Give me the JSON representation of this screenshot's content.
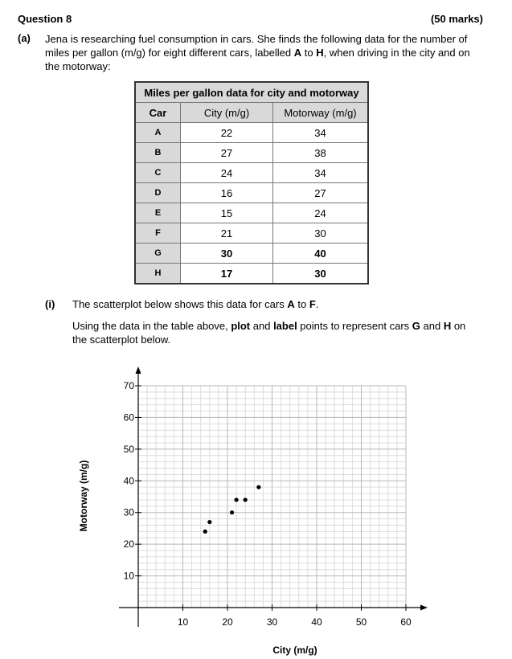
{
  "question": {
    "title": "Question 8",
    "marks": "(50 marks)",
    "part_label": "(a)",
    "part_text_1": "Jena is researching fuel consumption in cars.  She finds the following data for the number of miles per gallon (m/g) for eight different cars, labelled ",
    "part_text_A": "A",
    "part_text_2": " to ",
    "part_text_H": "H",
    "part_text_3": ", when driving in the city and on the motorway:"
  },
  "table": {
    "caption": "Miles per gallon data for city and motorway",
    "headers": [
      "Car",
      "City (m/g)",
      "Motorway (m/g)"
    ],
    "rows": [
      {
        "car": "A",
        "city": "22",
        "motorway": "34",
        "bold": false
      },
      {
        "car": "B",
        "city": "27",
        "motorway": "38",
        "bold": false
      },
      {
        "car": "C",
        "city": "24",
        "motorway": "34",
        "bold": false
      },
      {
        "car": "D",
        "city": "16",
        "motorway": "27",
        "bold": false
      },
      {
        "car": "E",
        "city": "15",
        "motorway": "24",
        "bold": false
      },
      {
        "car": "F",
        "city": "21",
        "motorway": "30",
        "bold": false
      },
      {
        "car": "G",
        "city": "30",
        "motorway": "40",
        "bold": true
      },
      {
        "car": "H",
        "city": "17",
        "motorway": "30",
        "bold": true
      }
    ]
  },
  "subpart": {
    "label": "(i)",
    "line1_a": "The scatterplot below shows this data for cars ",
    "line1_A": "A",
    "line1_b": " to ",
    "line1_F": "F",
    "line1_c": ".",
    "line2_a": "Using the data in the table above, ",
    "line2_plot": "plot",
    "line2_b": " and ",
    "line2_label": "label",
    "line2_c": " points to represent cars ",
    "line2_G": "G",
    "line2_d": " and ",
    "line2_H": "H",
    "line2_e": " on the scatterplot below."
  },
  "chart_data": {
    "type": "scatter",
    "title": "",
    "xlabel": "City (m/g)",
    "ylabel": "Motorway (m/g)",
    "xlim": [
      0,
      60
    ],
    "ylim": [
      0,
      70
    ],
    "x_ticks": [
      10,
      20,
      30,
      40,
      50,
      60
    ],
    "y_ticks": [
      10,
      20,
      30,
      40,
      50,
      60,
      70
    ],
    "grid": true,
    "grid_minor_step": 2,
    "points": [
      {
        "x": 22,
        "y": 34
      },
      {
        "x": 27,
        "y": 38
      },
      {
        "x": 24,
        "y": 34
      },
      {
        "x": 16,
        "y": 27
      },
      {
        "x": 15,
        "y": 24
      },
      {
        "x": 21,
        "y": 30
      }
    ]
  }
}
